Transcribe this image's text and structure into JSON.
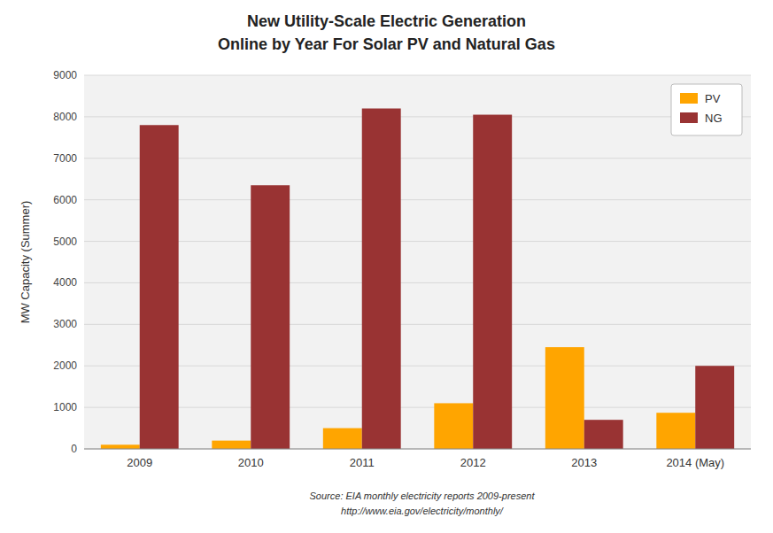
{
  "chart_data": {
    "type": "bar",
    "title": "New Utility-Scale Electric Generation",
    "subtitle": "Online by Year For Solar PV and Natural Gas",
    "categories": [
      "2009",
      "2010",
      "2011",
      "2012",
      "2013",
      "2014 (May)"
    ],
    "series": [
      {
        "name": "PV",
        "color": "#FFA500",
        "values": [
          100,
          200,
          500,
          1100,
          2450,
          870
        ]
      },
      {
        "name": "NG",
        "color": "#993333",
        "values": [
          7800,
          6350,
          8200,
          8050,
          700,
          2000
        ]
      }
    ],
    "ylabel": "MW Capacity (Summer)",
    "ylim": [
      0,
      9000
    ],
    "yticks": [
      0,
      1000,
      2000,
      3000,
      4000,
      5000,
      6000,
      7000,
      8000,
      9000
    ],
    "grid": true,
    "legend": "upper right",
    "annotations": [
      "Source: EIA monthly electricity reports 2009-present",
      "http://www.eia.gov/electricity/monthly/"
    ]
  }
}
